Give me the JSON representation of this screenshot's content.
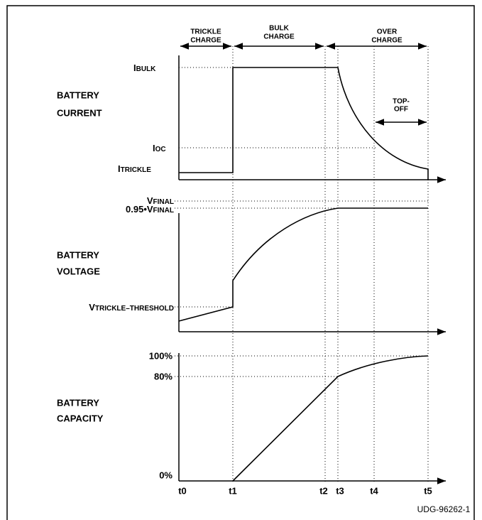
{
  "phases": {
    "trickle": [
      "TRICKLE",
      "CHARGE"
    ],
    "bulk": [
      "BULK",
      "CHARGE"
    ],
    "over": [
      "OVER",
      "CHARGE"
    ],
    "topoff": [
      "TOP-",
      "OFF"
    ]
  },
  "panels": [
    {
      "title": [
        "BATTERY",
        "CURRENT"
      ],
      "levels": [
        {
          "symbol": "I",
          "subscript": "BULK"
        },
        {
          "symbol": "I",
          "subscript": "OC"
        },
        {
          "symbol": "I",
          "subscript": "TRICKLE"
        }
      ]
    },
    {
      "title": [
        "BATTERY",
        "VOLTAGE"
      ],
      "levels": [
        {
          "symbol": "V",
          "subscript": "FINAL"
        },
        {
          "prefix": "0.95•V",
          "subscript": "FINAL"
        },
        {
          "symbol": "V",
          "subscript": "TRICKLE–THRESHOLD"
        }
      ]
    },
    {
      "title": [
        "BATTERY",
        "CAPACITY"
      ],
      "levels": [
        "100%",
        "80%",
        "0%"
      ]
    }
  ],
  "times": [
    "t0",
    "t1",
    "t2",
    "t3",
    "t4",
    "t5"
  ],
  "figure_id": "UDG-96262-1"
}
